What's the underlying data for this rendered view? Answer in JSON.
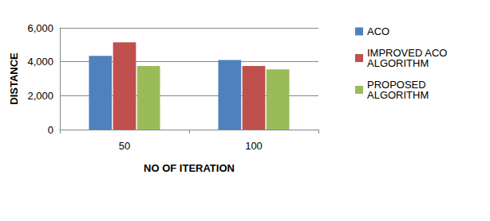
{
  "chart_data": {
    "type": "bar",
    "x_label": "NO OF ITERATION",
    "y_label": "DISTANCE",
    "categories": [
      "50",
      "100"
    ],
    "series": [
      {
        "name": "ACO",
        "color": "#4f81bd",
        "values": [
          4350,
          4100
        ]
      },
      {
        "name": "IMPROVED ACO ALGORITHM",
        "color": "#c0504d",
        "values": [
          5150,
          3750
        ]
      },
      {
        "name": "PROPOSED ALGORITHM",
        "color": "#9bbb59",
        "values": [
          3750,
          3550
        ]
      }
    ],
    "ylim": [
      0,
      6000
    ],
    "yticks": [
      0,
      2000,
      4000,
      6000
    ],
    "grid": true,
    "legend": "right"
  }
}
